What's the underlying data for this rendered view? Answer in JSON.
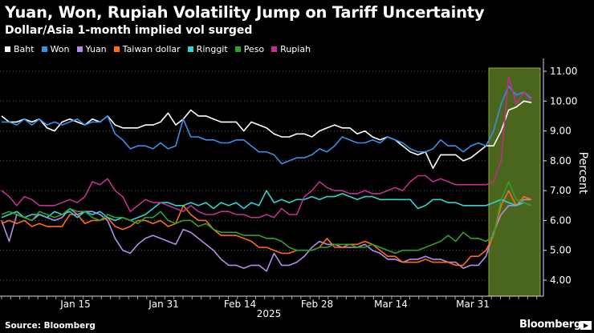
{
  "title": "Yuan, Won, Rupiah Volatility Jump on Tariff Uncertainty",
  "subtitle": "Dollar/Asia 1-month implied vol surged",
  "source": "Source: Bloomberg",
  "brand": "Bloomberg",
  "chart_data": {
    "type": "line",
    "ylabel": "Percent",
    "xlabel": "2025",
    "ylim": [
      3.6,
      11.5
    ],
    "yticks": [
      "4.00",
      "5.00",
      "6.00",
      "7.00",
      "8.00",
      "9.00",
      "10.00",
      "11.00"
    ],
    "xticks": [
      "Jan 15",
      "Jan 31",
      "Feb 14",
      "Feb 28",
      "Mar 14",
      "Mar 31"
    ],
    "grid": "horizontal dotted",
    "legend_position": "top",
    "highlight_region": {
      "from_index": 63,
      "to_index": 70,
      "color": "#4e6a1e"
    },
    "series": [
      {
        "name": "Baht",
        "color": "#ffffff",
        "values": [
          9.5,
          9.3,
          9.3,
          9.4,
          9.3,
          9.4,
          9.1,
          9.0,
          9.3,
          9.4,
          9.3,
          9.2,
          9.4,
          9.3,
          9.5,
          9.2,
          9.1,
          9.1,
          9.1,
          9.2,
          9.2,
          9.3,
          9.6,
          9.2,
          9.4,
          9.7,
          9.5,
          9.5,
          9.4,
          9.3,
          9.3,
          9.3,
          9.0,
          9.3,
          9.2,
          9.1,
          8.9,
          8.8,
          8.8,
          8.9,
          8.9,
          8.8,
          9.0,
          9.1,
          9.2,
          9.1,
          9.1,
          8.9,
          9.0,
          8.8,
          8.7,
          8.8,
          8.7,
          8.5,
          8.3,
          8.2,
          8.3,
          7.75,
          8.2,
          8.2,
          8.2,
          8.0,
          8.1,
          8.3,
          8.5,
          8.5,
          9.0,
          9.7,
          9.8,
          10.0,
          9.95
        ]
      },
      {
        "name": "Won",
        "color": "#3a8ee6",
        "values": [
          9.3,
          9.3,
          9.2,
          9.4,
          9.2,
          9.4,
          9.2,
          9.3,
          9.2,
          9.3,
          9.4,
          9.2,
          9.3,
          9.3,
          9.5,
          8.9,
          8.7,
          8.4,
          8.5,
          8.5,
          8.4,
          8.6,
          8.4,
          8.5,
          9.4,
          8.8,
          8.8,
          8.7,
          8.7,
          8.6,
          8.6,
          8.7,
          8.7,
          8.5,
          8.3,
          8.3,
          8.2,
          7.9,
          8.0,
          8.1,
          8.1,
          8.2,
          8.4,
          8.3,
          8.5,
          8.8,
          8.7,
          8.6,
          8.6,
          8.7,
          8.6,
          8.8,
          8.7,
          8.6,
          8.4,
          8.3,
          8.3,
          8.4,
          8.7,
          8.5,
          8.5,
          8.3,
          8.5,
          8.6,
          8.5,
          9.0,
          9.9,
          10.5,
          10.2,
          10.3,
          10.1
        ]
      },
      {
        "name": "Yuan",
        "color": "#b48ce8",
        "values": [
          6.0,
          5.3,
          6.2,
          6.1,
          6.0,
          6.2,
          6.1,
          6.0,
          6.1,
          6.4,
          6.2,
          6.3,
          6.3,
          6.2,
          6.0,
          5.4,
          5.0,
          4.9,
          5.2,
          5.4,
          5.5,
          5.4,
          5.3,
          5.2,
          5.7,
          5.6,
          5.4,
          5.2,
          5.0,
          4.7,
          4.5,
          4.5,
          4.4,
          4.5,
          4.5,
          4.3,
          4.9,
          4.5,
          4.5,
          4.6,
          4.8,
          5.1,
          5.3,
          5.2,
          5.2,
          5.1,
          5.1,
          5.1,
          5.2,
          5.0,
          4.9,
          4.7,
          4.7,
          4.6,
          4.7,
          4.7,
          4.8,
          4.7,
          4.7,
          4.6,
          4.6,
          4.4,
          4.5,
          4.5,
          4.8,
          5.6,
          6.2,
          6.5,
          6.5,
          6.7,
          6.7
        ]
      },
      {
        "name": "Taiwan dollar",
        "color": "#ff6a1a",
        "values": [
          5.9,
          6.0,
          5.9,
          6.0,
          5.8,
          5.9,
          5.8,
          5.8,
          5.8,
          6.2,
          6.2,
          5.9,
          6.0,
          6.0,
          6.1,
          5.8,
          5.7,
          5.8,
          6.0,
          6.0,
          5.9,
          6.0,
          5.8,
          5.9,
          6.5,
          6.2,
          6.0,
          6.0,
          5.7,
          5.5,
          5.5,
          5.5,
          5.4,
          5.3,
          5.1,
          5.1,
          5.0,
          4.9,
          4.9,
          5.0,
          5.0,
          5.0,
          5.1,
          5.4,
          5.1,
          5.1,
          5.2,
          5.2,
          5.3,
          5.2,
          5.0,
          4.8,
          4.8,
          4.6,
          4.6,
          4.6,
          4.7,
          4.6,
          4.6,
          4.6,
          4.5,
          4.5,
          4.8,
          4.8,
          5.0,
          5.5,
          6.5,
          7.0,
          6.5,
          6.8,
          6.7
        ]
      },
      {
        "name": "Ringgit",
        "color": "#32d2d2",
        "values": [
          6.1,
          6.2,
          6.3,
          6.1,
          6.2,
          6.2,
          6.1,
          6.3,
          6.2,
          6.3,
          6.1,
          6.3,
          6.2,
          6.3,
          6.1,
          6.0,
          6.1,
          6.0,
          6.1,
          6.2,
          6.4,
          6.6,
          6.6,
          6.5,
          6.5,
          6.6,
          6.5,
          6.6,
          6.4,
          6.6,
          6.5,
          6.6,
          6.4,
          6.6,
          6.5,
          7.0,
          6.6,
          6.7,
          6.6,
          6.7,
          6.7,
          6.8,
          6.7,
          6.8,
          6.8,
          6.9,
          6.8,
          6.7,
          6.8,
          6.8,
          6.7,
          6.7,
          6.7,
          6.7,
          6.7,
          6.4,
          6.5,
          6.7,
          6.7,
          6.6,
          6.6,
          6.5,
          6.5,
          6.5,
          6.5,
          6.6,
          6.7,
          6.6,
          6.5,
          6.6,
          6.5
        ]
      },
      {
        "name": "Peso",
        "color": "#2ea02e",
        "values": [
          6.2,
          6.3,
          6.2,
          6.1,
          6.0,
          6.3,
          6.2,
          6.1,
          6.2,
          6.4,
          6.3,
          6.3,
          6.1,
          6.0,
          6.2,
          6.1,
          6.1,
          6.0,
          5.9,
          6.1,
          6.1,
          6.3,
          6.0,
          5.9,
          6.0,
          6.0,
          5.8,
          5.9,
          5.7,
          5.6,
          5.6,
          5.6,
          5.5,
          5.5,
          5.5,
          5.4,
          5.4,
          5.3,
          5.1,
          5.0,
          5.0,
          5.0,
          5.1,
          5.1,
          5.2,
          5.2,
          5.2,
          5.1,
          5.1,
          5.2,
          5.1,
          5.0,
          4.9,
          5.0,
          5.0,
          5.0,
          5.1,
          5.2,
          5.3,
          5.5,
          5.3,
          5.6,
          5.4,
          5.4,
          5.3,
          5.5,
          6.7,
          7.3,
          6.7,
          6.6,
          6.5
        ]
      },
      {
        "name": "Rupiah",
        "color": "#c0308c",
        "values": [
          7.0,
          6.8,
          6.5,
          6.8,
          6.7,
          6.5,
          6.5,
          6.5,
          6.6,
          6.7,
          6.6,
          6.8,
          7.3,
          7.2,
          7.4,
          7.0,
          6.8,
          6.3,
          6.5,
          6.7,
          6.6,
          6.6,
          6.5,
          6.4,
          6.3,
          6.5,
          6.3,
          6.2,
          6.2,
          6.3,
          6.3,
          6.2,
          6.2,
          6.1,
          6.1,
          6.2,
          6.1,
          6.4,
          6.2,
          6.2,
          6.8,
          7.0,
          7.3,
          7.1,
          7.0,
          7.0,
          6.9,
          6.9,
          7.0,
          6.9,
          6.9,
          7.0,
          7.1,
          7.0,
          7.3,
          7.5,
          7.5,
          7.3,
          7.4,
          7.3,
          7.2,
          7.2,
          7.2,
          7.2,
          7.2,
          7.3,
          8.0,
          10.8,
          9.9,
          10.3,
          10.0
        ]
      }
    ]
  }
}
